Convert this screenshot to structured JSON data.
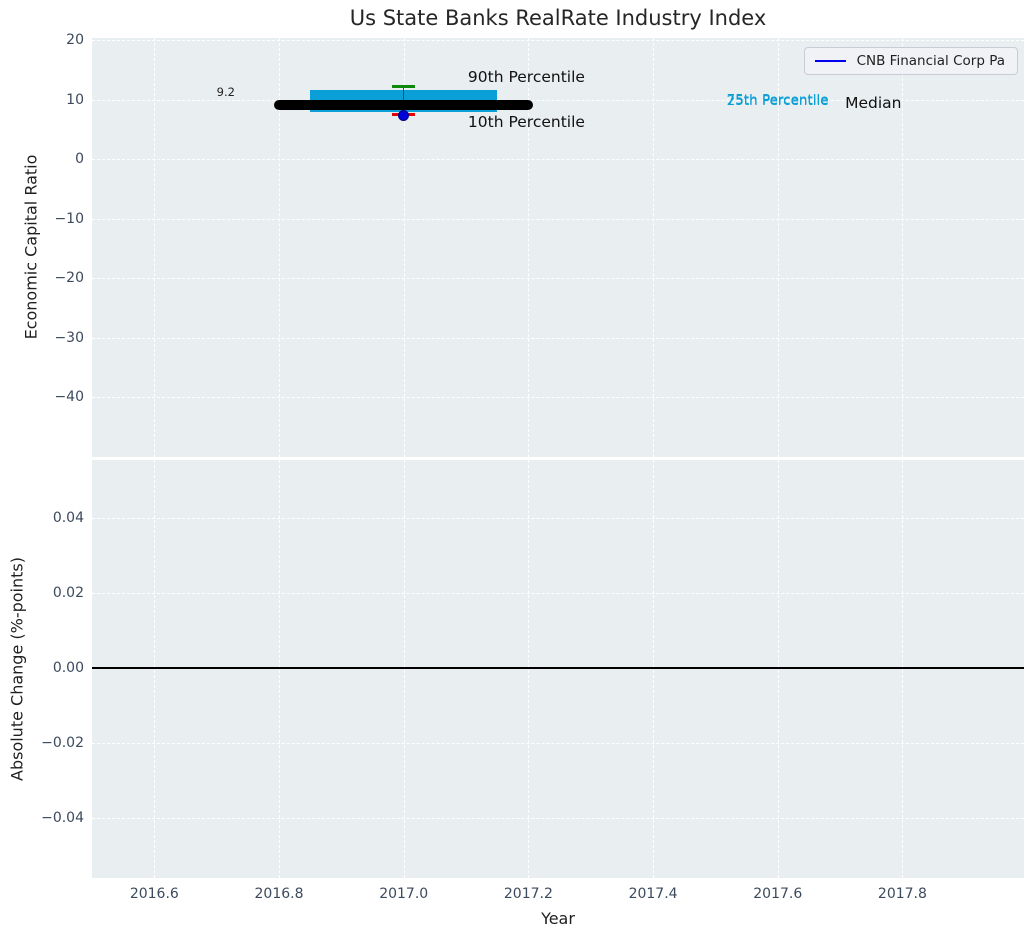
{
  "chart_data": [
    {
      "type": "boxplot",
      "title": "Us State Banks RealRate Industry Index",
      "xlabel": "Year",
      "ylabel": "Economic Capital Ratio",
      "xlim": [
        2016.5,
        2017.995
      ],
      "ylim": [
        -50,
        20.4
      ],
      "grid": true,
      "xticks": [
        {
          "v": 2016.6,
          "label": "2016.6"
        },
        {
          "v": 2016.8,
          "label": "2016.8"
        },
        {
          "v": 2017.0,
          "label": "2017.0"
        },
        {
          "v": 2017.2,
          "label": "2017.2"
        },
        {
          "v": 2017.4,
          "label": "2017.4"
        },
        {
          "v": 2017.6,
          "label": "2017.6"
        },
        {
          "v": 2017.8,
          "label": "2017.8"
        }
      ],
      "yticks": [
        {
          "v": 20,
          "label": "20"
        },
        {
          "v": 10,
          "label": "10"
        },
        {
          "v": 0,
          "label": "0"
        },
        {
          "v": -10,
          "label": "−10"
        },
        {
          "v": -20,
          "label": "−20"
        },
        {
          "v": -30,
          "label": "−30"
        },
        {
          "v": -40,
          "label": "−40"
        }
      ],
      "legend": {
        "label": "CNB Financial Corp Pa",
        "position": "upper right"
      },
      "series": [
        {
          "name": "CNB Financial Corp Pa",
          "x": [
            2017.0
          ],
          "y": [
            7.45
          ]
        }
      ],
      "boxes": [
        {
          "year": 2017.0,
          "p10": 7.55,
          "p25": 8.0,
          "median": 9.2,
          "p75": 11.7,
          "p90": 12.3,
          "box_x0": 2016.85,
          "box_x1": 2017.15,
          "median_x0": 2016.8,
          "median_x1": 2017.2,
          "cap_x0": 2016.982,
          "cap_x1": 2017.018
        }
      ],
      "annotations": [
        {
          "id": "p90-label",
          "text": "90th Percentile",
          "x": 2017.103,
          "y": 13.6,
          "color": "#111111",
          "size": 15.5
        },
        {
          "id": "p10-label",
          "text": "10th Percentile",
          "x": 2017.103,
          "y": 6.0,
          "color": "#111111",
          "size": 15.5
        },
        {
          "id": "p75-label",
          "text": "75th Percentile",
          "x": 2017.518,
          "y": 9.85,
          "color": "#0a9fd6",
          "size": 13.5
        },
        {
          "id": "p25-label",
          "text": "25th Percentile",
          "x": 2017.518,
          "y": 9.6,
          "color": "#0a9fd6",
          "size": 13.5
        },
        {
          "id": "median-label",
          "text": "Median",
          "x": 2017.708,
          "y": 9.3,
          "color": "#111111",
          "size": 15.5
        },
        {
          "id": "median-value-label",
          "text": "9.2",
          "x": 2016.7,
          "y": 11.2,
          "color": "#222222",
          "size": 11.5
        }
      ],
      "colors": {
        "plot_bg": "#e9eef0",
        "grid": "#ffffff",
        "box_fill": "#0a9fd6",
        "median_line": "#000000",
        "p90_cap": "#0c8a0c",
        "p10_cap": "#e60000",
        "whisker": "#37474f",
        "company_dot": "#0000d8",
        "company_dot_edge": "#000080",
        "legend_line": "#0000ee",
        "tick_text": "#3c4a5e",
        "title_text": "#262626"
      }
    },
    {
      "type": "line",
      "ylabel": "Absolute Change (%-points)",
      "ylim": [
        -0.056,
        0.0555
      ],
      "grid": true,
      "yticks": [
        {
          "v": 0.04,
          "label": "0.04"
        },
        {
          "v": 0.02,
          "label": "0.02"
        },
        {
          "v": 0.0,
          "label": "0.00"
        },
        {
          "v": -0.02,
          "label": "−0.02"
        },
        {
          "v": -0.04,
          "label": "−0.04"
        }
      ],
      "zero_line": 0.0,
      "series": []
    }
  ]
}
